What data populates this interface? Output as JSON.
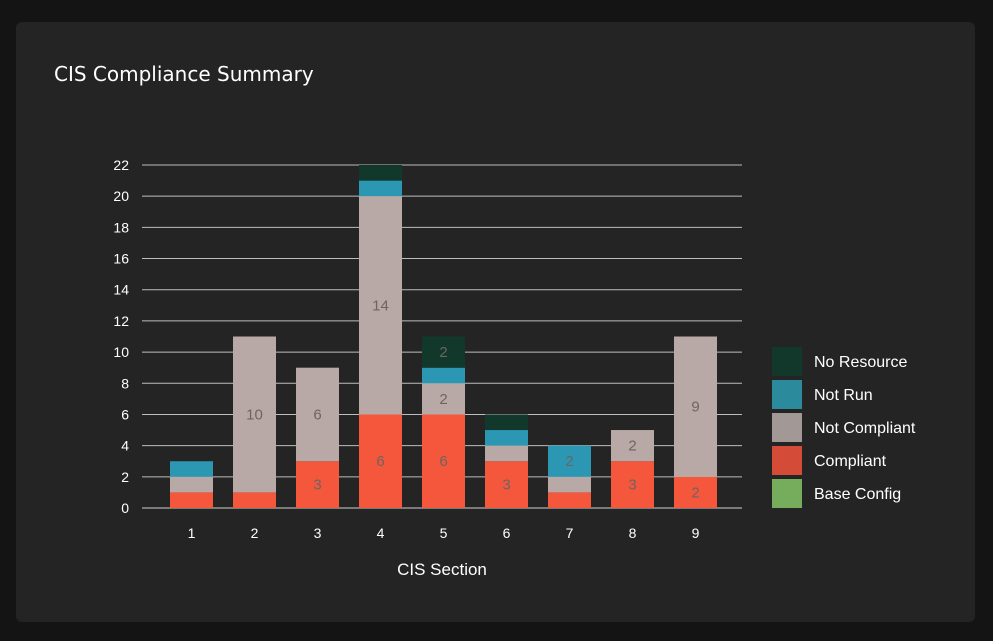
{
  "title": "CIS Compliance Summary",
  "chart_data": {
    "type": "bar",
    "stacked": true,
    "xlabel": "CIS Section",
    "ylabel": "",
    "ylim": [
      0,
      22
    ],
    "yticks": [
      0,
      2,
      4,
      6,
      8,
      10,
      12,
      14,
      16,
      18,
      20,
      22
    ],
    "grid": true,
    "legend_position": "right",
    "categories": [
      "1",
      "2",
      "3",
      "4",
      "5",
      "6",
      "7",
      "8",
      "9"
    ],
    "series": [
      {
        "name": "Base Config",
        "color": "#7cb05c",
        "values": [
          0,
          0,
          0,
          0,
          0,
          0,
          0,
          0,
          0
        ]
      },
      {
        "name": "Compliant",
        "color": "#f4573b",
        "values": [
          1,
          1,
          3,
          6,
          6,
          3,
          1,
          3,
          2
        ]
      },
      {
        "name": "Not Compliant",
        "color": "#b8a9a7",
        "values": [
          1,
          10,
          6,
          14,
          2,
          1,
          1,
          2,
          9
        ]
      },
      {
        "name": "Not Run",
        "color": "#2b97b3",
        "values": [
          1,
          0,
          0,
          1,
          1,
          1,
          2,
          0,
          0
        ]
      },
      {
        "name": "No Resource",
        "color": "#12372b",
        "values": [
          0,
          0,
          0,
          1,
          2,
          1,
          0,
          0,
          0
        ]
      }
    ],
    "data_labels": {
      "Compliant": [
        null,
        null,
        "3",
        "6",
        "6",
        "3",
        null,
        "3",
        "2"
      ],
      "Not Compliant": [
        null,
        "10",
        "6",
        "14",
        "2",
        null,
        null,
        "2",
        "9"
      ],
      "Not Run": [
        null,
        null,
        null,
        null,
        null,
        null,
        "2",
        null,
        null
      ],
      "No Resource": [
        null,
        null,
        null,
        null,
        "2",
        null,
        null,
        null,
        null
      ]
    },
    "legend": [
      {
        "name": "No Resource",
        "color": "#12372b"
      },
      {
        "name": "Not Run",
        "color": "#2b8a9c"
      },
      {
        "name": "Not Compliant",
        "color": "#a29896"
      },
      {
        "name": "Compliant",
        "color": "#d44c37"
      },
      {
        "name": "Base Config",
        "color": "#76ad5c"
      }
    ]
  }
}
